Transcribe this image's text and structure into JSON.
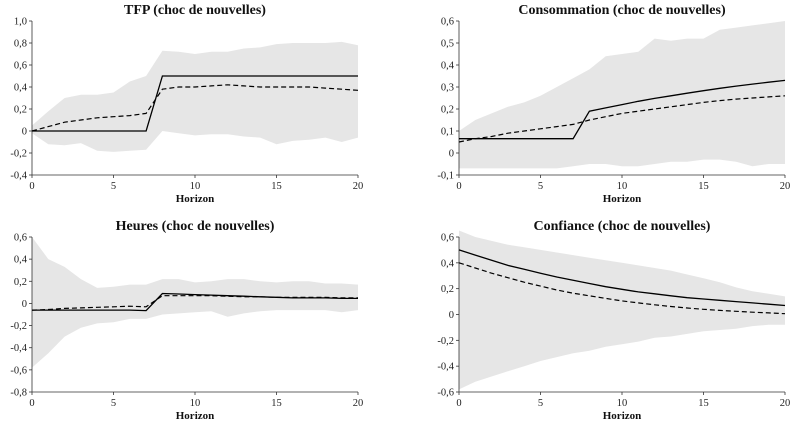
{
  "chart_data": [
    {
      "type": "line",
      "title": "TFP (choc de nouvelles)",
      "xlabel": "Horizon",
      "ylim": [
        -0.4,
        1.0
      ],
      "yticks": [
        "1,0",
        "0,8",
        "0,6",
        "0,4",
        "0,2",
        "0",
        "-0,2",
        "-0,4"
      ],
      "xticks": [
        "0",
        "5",
        "10",
        "15",
        "20"
      ],
      "x": [
        0,
        1,
        2,
        3,
        4,
        5,
        6,
        7,
        8,
        9,
        10,
        11,
        12,
        13,
        14,
        15,
        16,
        17,
        18,
        19,
        20
      ],
      "series": [
        {
          "style": "solid",
          "values": [
            0,
            0,
            0,
            0,
            0,
            0,
            0,
            0,
            0.5,
            0.5,
            0.5,
            0.5,
            0.5,
            0.5,
            0.5,
            0.5,
            0.5,
            0.5,
            0.5,
            0.5,
            0.5
          ]
        },
        {
          "style": "dashed",
          "values": [
            0,
            0.04,
            0.08,
            0.1,
            0.12,
            0.13,
            0.14,
            0.16,
            0.38,
            0.4,
            0.4,
            0.41,
            0.42,
            0.41,
            0.4,
            0.4,
            0.4,
            0.4,
            0.39,
            0.38,
            0.37
          ]
        },
        {
          "style": "band_upper",
          "values": [
            0.05,
            0.18,
            0.3,
            0.33,
            0.33,
            0.35,
            0.45,
            0.5,
            0.73,
            0.72,
            0.7,
            0.72,
            0.72,
            0.75,
            0.76,
            0.79,
            0.8,
            0.8,
            0.8,
            0.81,
            0.78
          ]
        },
        {
          "style": "band_lower",
          "values": [
            -0.02,
            -0.12,
            -0.13,
            -0.11,
            -0.18,
            -0.19,
            -0.18,
            -0.17,
            0.0,
            -0.02,
            -0.04,
            -0.03,
            -0.03,
            -0.05,
            -0.06,
            -0.12,
            -0.09,
            -0.08,
            -0.06,
            -0.1,
            -0.06
          ]
        }
      ]
    },
    {
      "type": "line",
      "title": "Consommation (choc de nouvelles)",
      "xlabel": "Horizon",
      "ylim": [
        -0.1,
        0.6
      ],
      "yticks": [
        "0,6",
        "0,5",
        "0,4",
        "0,3",
        "0,2",
        "0,1",
        "0",
        "-0,1"
      ],
      "xticks": [
        "0",
        "5",
        "10",
        "15",
        "20"
      ],
      "x": [
        0,
        1,
        2,
        3,
        4,
        5,
        6,
        7,
        8,
        9,
        10,
        11,
        12,
        13,
        14,
        15,
        16,
        17,
        18,
        19,
        20
      ],
      "series": [
        {
          "style": "solid",
          "values": [
            0.065,
            0.065,
            0.065,
            0.065,
            0.065,
            0.065,
            0.065,
            0.065,
            0.19,
            0.205,
            0.22,
            0.235,
            0.248,
            0.26,
            0.272,
            0.283,
            0.294,
            0.304,
            0.313,
            0.322,
            0.33
          ]
        },
        {
          "style": "dashed",
          "values": [
            0.05,
            0.065,
            0.075,
            0.09,
            0.1,
            0.11,
            0.12,
            0.13,
            0.15,
            0.165,
            0.18,
            0.19,
            0.2,
            0.21,
            0.22,
            0.23,
            0.238,
            0.245,
            0.25,
            0.255,
            0.26
          ]
        },
        {
          "style": "band_upper",
          "values": [
            0.1,
            0.15,
            0.18,
            0.21,
            0.23,
            0.26,
            0.3,
            0.34,
            0.38,
            0.44,
            0.45,
            0.46,
            0.52,
            0.51,
            0.52,
            0.52,
            0.56,
            0.57,
            0.58,
            0.59,
            0.6
          ]
        },
        {
          "style": "band_lower",
          "values": [
            -0.07,
            -0.07,
            -0.07,
            -0.07,
            -0.07,
            -0.07,
            -0.07,
            -0.06,
            -0.05,
            -0.05,
            -0.06,
            -0.06,
            -0.05,
            -0.04,
            -0.04,
            -0.03,
            -0.03,
            -0.04,
            -0.06,
            -0.05,
            -0.05
          ]
        }
      ]
    },
    {
      "type": "line",
      "title": "Heures (choc de nouvelles)",
      "xlabel": "Horizon",
      "ylim": [
        -0.8,
        0.6
      ],
      "yticks": [
        "0,6",
        "0,4",
        "0,2",
        "0",
        "-0,2",
        "-0,4",
        "-0,6",
        "-0,8"
      ],
      "xticks": [
        "0",
        "5",
        "10",
        "15",
        "20"
      ],
      "x": [
        0,
        1,
        2,
        3,
        4,
        5,
        6,
        7,
        8,
        9,
        10,
        11,
        12,
        13,
        14,
        15,
        16,
        17,
        18,
        19,
        20
      ],
      "series": [
        {
          "style": "solid",
          "values": [
            -0.06,
            -0.06,
            -0.06,
            -0.06,
            -0.06,
            -0.06,
            -0.06,
            -0.065,
            0.09,
            0.085,
            0.08,
            0.075,
            0.07,
            0.065,
            0.06,
            0.055,
            0.05,
            0.05,
            0.05,
            0.045,
            0.045
          ]
        },
        {
          "style": "dashed",
          "values": [
            -0.06,
            -0.055,
            -0.045,
            -0.04,
            -0.035,
            -0.03,
            -0.025,
            -0.03,
            0.07,
            0.07,
            0.07,
            0.07,
            0.065,
            0.06,
            0.06,
            0.055,
            0.055,
            0.055,
            0.055,
            0.05,
            0.05
          ]
        },
        {
          "style": "band_upper",
          "values": [
            0.6,
            0.4,
            0.33,
            0.22,
            0.14,
            0.15,
            0.17,
            0.17,
            0.22,
            0.22,
            0.19,
            0.2,
            0.22,
            0.22,
            0.2,
            0.19,
            0.2,
            0.2,
            0.18,
            0.18,
            0.17
          ]
        },
        {
          "style": "band_lower",
          "values": [
            -0.58,
            -0.45,
            -0.3,
            -0.22,
            -0.18,
            -0.17,
            -0.14,
            -0.14,
            -0.1,
            -0.09,
            -0.08,
            -0.07,
            -0.12,
            -0.09,
            -0.07,
            -0.06,
            -0.06,
            -0.06,
            -0.06,
            -0.08,
            -0.06
          ]
        }
      ]
    },
    {
      "type": "line",
      "title": "Confiance (choc de nouvelles)",
      "xlabel": "Horizon",
      "ylim": [
        -0.6,
        0.6
      ],
      "yticks": [
        "0,6",
        "0,4",
        "0,2",
        "0",
        "-0,2",
        "-0,4",
        "-0,6"
      ],
      "xticks": [
        "0",
        "5",
        "10",
        "15",
        "20"
      ],
      "x": [
        0,
        1,
        2,
        3,
        4,
        5,
        6,
        7,
        8,
        9,
        10,
        11,
        12,
        13,
        14,
        15,
        16,
        17,
        18,
        19,
        20
      ],
      "series": [
        {
          "style": "solid",
          "values": [
            0.5,
            0.46,
            0.42,
            0.38,
            0.35,
            0.32,
            0.29,
            0.265,
            0.24,
            0.215,
            0.195,
            0.175,
            0.16,
            0.145,
            0.13,
            0.12,
            0.11,
            0.1,
            0.09,
            0.08,
            0.07
          ]
        },
        {
          "style": "dashed",
          "values": [
            0.4,
            0.36,
            0.32,
            0.285,
            0.25,
            0.22,
            0.19,
            0.165,
            0.145,
            0.125,
            0.105,
            0.09,
            0.075,
            0.062,
            0.05,
            0.04,
            0.032,
            0.025,
            0.018,
            0.012,
            0.006
          ]
        },
        {
          "style": "band_upper",
          "values": [
            0.65,
            0.6,
            0.57,
            0.54,
            0.52,
            0.5,
            0.48,
            0.46,
            0.44,
            0.42,
            0.4,
            0.38,
            0.36,
            0.34,
            0.31,
            0.28,
            0.25,
            0.21,
            0.18,
            0.16,
            0.14
          ]
        },
        {
          "style": "band_lower",
          "values": [
            -0.58,
            -0.52,
            -0.48,
            -0.44,
            -0.4,
            -0.36,
            -0.33,
            -0.3,
            -0.28,
            -0.25,
            -0.23,
            -0.21,
            -0.18,
            -0.17,
            -0.15,
            -0.13,
            -0.12,
            -0.11,
            -0.09,
            -0.08,
            -0.08
          ]
        }
      ]
    }
  ]
}
